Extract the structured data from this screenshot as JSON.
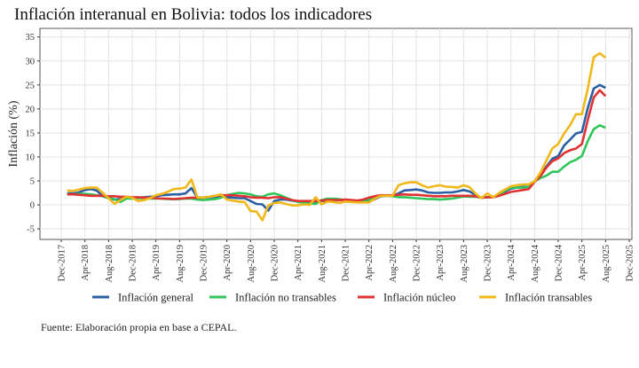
{
  "chart_data": {
    "type": "line",
    "title": "Inflación interanual en Bolivia: todos los indicadores",
    "xlabel": "",
    "ylabel": "Inflación (%)",
    "ylim": [
      -7.2,
      36.8
    ],
    "yticks": [
      -5,
      0,
      5,
      10,
      15,
      20,
      25,
      30,
      35
    ],
    "xtick_labels": [
      "Dec-2017",
      "Apr-2018",
      "Aug-2018",
      "Dec-2018",
      "Apr-2019",
      "Aug-2019",
      "Dec-2019",
      "Apr-2020",
      "Aug-2020",
      "Dec-2020",
      "Apr-2021",
      "Aug-2021",
      "Dec-2021",
      "Apr-2022",
      "Aug-2022",
      "Dec-2022",
      "Apr-2023",
      "Aug-2023",
      "Dec-2023",
      "Apr-2024",
      "Aug-2024",
      "Dec-2024",
      "Apr-2025",
      "Aug-2025",
      "Dec-2025"
    ],
    "x_start": "Jan-2018",
    "x_end": "Aug-2025",
    "x_frequency": "monthly",
    "grid": true,
    "legend_position": "bottom",
    "series": [
      {
        "name": "Inflación general",
        "color": "#2b5fa3",
        "values": [
          2.4,
          2.4,
          2.6,
          3.1,
          3.3,
          3.0,
          1.8,
          1.4,
          1.1,
          1.2,
          1.4,
          1.5,
          1.5,
          1.6,
          1.7,
          1.8,
          2.0,
          2.1,
          2.2,
          2.2,
          2.4,
          3.5,
          1.6,
          1.5,
          1.6,
          1.7,
          1.8,
          1.6,
          1.5,
          1.4,
          1.4,
          0.8,
          0.2,
          0.1,
          -1.2,
          0.8,
          1.1,
          1.1,
          0.9,
          0.7,
          0.6,
          0.6,
          0.7,
          0.8,
          0.9,
          1.0,
          1.0,
          1.0,
          0.9,
          0.8,
          0.8,
          0.7,
          1.2,
          1.8,
          1.9,
          1.9,
          2.4,
          3.0,
          3.1,
          3.2,
          3.0,
          2.6,
          2.5,
          2.5,
          2.6,
          2.6,
          2.8,
          3.1,
          2.8,
          2.1,
          1.5,
          1.6,
          1.7,
          2.0,
          2.8,
          3.4,
          3.6,
          3.75,
          3.8,
          4.9,
          6.4,
          8.0,
          9.6,
          10.2,
          12.4,
          13.6,
          14.9,
          15.2,
          20.2,
          24.25,
          25.0,
          24.4
        ]
      },
      {
        "name": "Inflación no transables",
        "color": "#2fc65a",
        "values": [
          2.2,
          2.2,
          2.3,
          2.3,
          2.2,
          2.0,
          1.8,
          1.5,
          1.2,
          0.6,
          1.3,
          1.3,
          1.4,
          1.4,
          1.3,
          1.3,
          1.3,
          1.2,
          1.2,
          1.2,
          1.3,
          1.3,
          1.1,
          1.0,
          1.1,
          1.2,
          1.5,
          2.0,
          2.3,
          2.5,
          2.4,
          2.2,
          1.8,
          1.7,
          2.2,
          2.4,
          2.0,
          1.5,
          1.0,
          0.6,
          0.4,
          0.3,
          0.2,
          1.0,
          1.3,
          1.3,
          1.2,
          1.0,
          0.9,
          0.8,
          0.9,
          1.1,
          1.5,
          1.9,
          1.9,
          1.8,
          1.6,
          1.6,
          1.5,
          1.4,
          1.3,
          1.2,
          1.2,
          1.1,
          1.2,
          1.3,
          1.5,
          1.75,
          1.7,
          1.7,
          1.5,
          1.6,
          1.6,
          2.0,
          3.0,
          3.6,
          3.6,
          3.6,
          3.8,
          4.9,
          5.6,
          6.1,
          6.9,
          6.9,
          8.0,
          8.9,
          9.4,
          10.2,
          13.3,
          15.8,
          16.6,
          16.1
        ]
      },
      {
        "name": "Inflación núcleo",
        "color": "#e03232",
        "values": [
          2.2,
          2.2,
          2.1,
          2.0,
          1.9,
          1.9,
          1.9,
          1.8,
          1.8,
          1.7,
          1.7,
          1.6,
          1.6,
          1.5,
          1.5,
          1.4,
          1.3,
          1.3,
          1.2,
          1.3,
          1.4,
          1.5,
          1.5,
          1.5,
          1.7,
          1.9,
          2.0,
          2.0,
          2.0,
          1.9,
          1.8,
          1.6,
          1.5,
          1.5,
          1.4,
          1.6,
          1.6,
          1.3,
          1.0,
          0.8,
          0.8,
          0.8,
          0.8,
          0.9,
          1.0,
          1.0,
          1.0,
          1.1,
          1.0,
          0.9,
          1.1,
          1.5,
          1.8,
          2.0,
          2.0,
          2.0,
          2.1,
          2.2,
          2.1,
          2.1,
          2.0,
          1.9,
          1.8,
          1.8,
          1.8,
          1.9,
          1.9,
          1.9,
          1.9,
          1.8,
          1.5,
          1.6,
          1.6,
          1.9,
          2.3,
          2.7,
          2.9,
          3.1,
          3.3,
          4.8,
          6.0,
          7.8,
          9.1,
          9.7,
          10.8,
          11.4,
          11.75,
          12.7,
          17.7,
          22.4,
          23.9,
          22.7
        ]
      },
      {
        "name": "Inflación transables",
        "color": "#f0b81a",
        "values": [
          3.0,
          2.9,
          3.2,
          3.5,
          3.6,
          3.6,
          2.5,
          1.4,
          0.2,
          1.0,
          1.7,
          1.5,
          0.8,
          1.0,
          1.4,
          2.0,
          2.3,
          2.7,
          3.3,
          3.4,
          3.6,
          5.3,
          1.6,
          1.5,
          1.7,
          1.9,
          2.2,
          1.1,
          0.9,
          0.7,
          0.6,
          -1.3,
          -1.4,
          -3.2,
          -0.1,
          0.4,
          0.5,
          0.2,
          -0.1,
          -0.1,
          0.1,
          0.0,
          1.6,
          0.1,
          0.7,
          0.6,
          0.4,
          0.7,
          0.6,
          0.5,
          0.5,
          0.5,
          1.3,
          1.9,
          1.9,
          1.9,
          4.1,
          4.5,
          4.7,
          4.7,
          4.1,
          3.6,
          3.9,
          4.1,
          3.8,
          3.75,
          3.6,
          4.1,
          3.7,
          2.4,
          1.4,
          2.4,
          1.6,
          2.5,
          3.2,
          3.9,
          4.1,
          4.25,
          4.3,
          4.9,
          6.75,
          9.25,
          11.75,
          12.7,
          14.9,
          16.6,
          18.9,
          18.9,
          24.25,
          30.8,
          31.6,
          30.7
        ]
      }
    ],
    "caption": "Fuente: Elaboración propia en base a CEPAL."
  }
}
